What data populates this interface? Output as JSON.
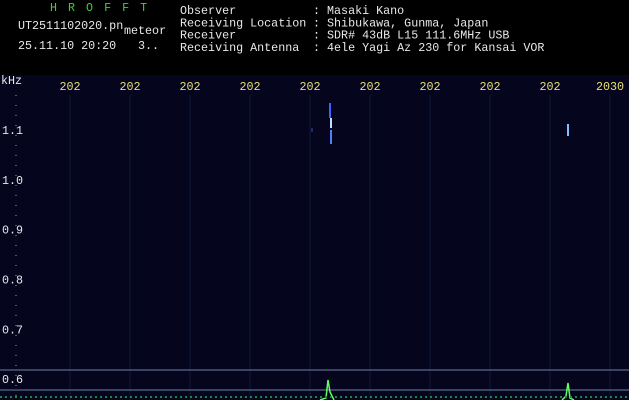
{
  "header": {
    "app": "H R O F F T",
    "file": "UT2511102020.pn",
    "tag": "meteor",
    "datetime": "25.11.10 20:20",
    "extra": "3..",
    "info": [
      [
        "Observer",
        ": Masaki Kano"
      ],
      [
        "Receiving Location",
        ": Shibukawa, Gunma, Japan"
      ],
      [
        "Receiver",
        ": SDR# 43dB L15 111.6MHz USB"
      ],
      [
        "Receiving Antenna",
        ": 4ele Yagi Az 230 for Kansai VOR"
      ]
    ]
  },
  "axis": {
    "unit": "kHz",
    "y_labels": [
      "1.1",
      "1.0",
      "0.9",
      "0.8",
      "0.7",
      "0.6"
    ],
    "x_labels": [
      "202",
      "202",
      "202",
      "202",
      "202",
      "202",
      "202",
      "202",
      "202",
      "2030"
    ]
  }
}
